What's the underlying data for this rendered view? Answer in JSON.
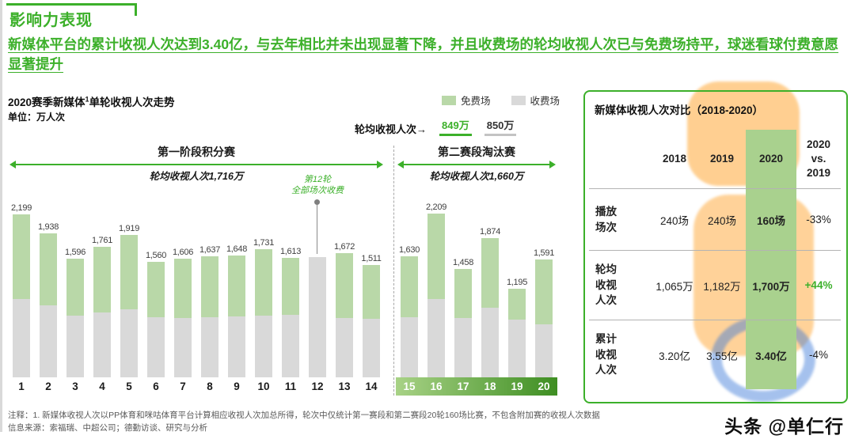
{
  "header": {
    "section_title": "影响力表现",
    "headline": "新媒体平台的累计收视人次达到3.40亿，与去年相比并未出现显著下降，并且收费场的轮均收视人次已与免费场持平，球迷看球付费意愿显著提升"
  },
  "colors": {
    "brand_green": "#3cb02a",
    "free_bar": "#b9d8a8",
    "paid_bar": "#d9d9d9",
    "table_highlight": "#a9d18e"
  },
  "chart_data": {
    "type": "stacked-bar",
    "title_pre": "2020赛季新媒体",
    "title_sup": "1",
    "title_post": "单轮收视人次走势",
    "unit": "单位：万人次",
    "legend": [
      {
        "label": "免费场",
        "color": "#b9d8a8"
      },
      {
        "label": "收费场",
        "color": "#d9d9d9"
      }
    ],
    "round_avg": {
      "label": "轮均收视人次→",
      "free": "849万",
      "paid": "850万"
    },
    "stages": [
      {
        "name": "第一阶段积分赛",
        "avg_label": "轮均收视人次1,716万",
        "round_start": 1,
        "round_end": 14
      },
      {
        "name": "第二赛段淘汰赛",
        "avg_label": "轮均收视人次1,660万",
        "round_start": 15,
        "round_end": 20
      }
    ],
    "annotation": {
      "line1": "第12轮",
      "line2": "全部场次收费",
      "round": 12
    },
    "categories": [
      "1",
      "2",
      "3",
      "4",
      "5",
      "6",
      "7",
      "8",
      "9",
      "10",
      "11",
      "12",
      "13",
      "14",
      "15",
      "16",
      "17",
      "18",
      "19",
      "20"
    ],
    "totals": [
      2199,
      1938,
      1596,
      1761,
      1919,
      1560,
      1606,
      1637,
      1648,
      1731,
      1613,
      1620,
      1672,
      1511,
      1630,
      2209,
      1458,
      1874,
      1195,
      1591
    ],
    "bar_labels": [
      "2,199",
      "1,938",
      "1,596",
      "1,761",
      "1,919",
      "1,560",
      "1,606",
      "1,637",
      "1,648",
      "1,731",
      "1,613",
      "",
      "1,672",
      "1,511",
      "1,630",
      "2,209",
      "1,458",
      "1,874",
      "1,195",
      "1,591"
    ],
    "series": [
      {
        "name": "免费场",
        "values": [
          1143,
          969,
          766,
          881,
          998,
          749,
          803,
          819,
          824,
          900,
          774,
          0,
          869,
          725,
          815,
          1149,
          656,
          937,
          418,
          875
        ]
      },
      {
        "name": "收费场",
        "values": [
          1056,
          969,
          830,
          880,
          921,
          811,
          803,
          818,
          824,
          831,
          839,
          1620,
          803,
          786,
          815,
          1060,
          802,
          937,
          777,
          716
        ]
      }
    ],
    "ymax": 2209,
    "ylabel": "万人次"
  },
  "comparison_table": {
    "title": "新媒体收视人次对比（2018-2020）",
    "columns": [
      "",
      "2018",
      "2019",
      "2020",
      "2020\nvs.\n2019"
    ],
    "rows": [
      {
        "label": "播放\n场次",
        "values": [
          "240场",
          "240场",
          "160场",
          "-33%"
        ]
      },
      {
        "label": "轮均\n收视\n人次",
        "values": [
          "1,065万",
          "1,182万",
          "1,700万",
          "+44%"
        ]
      },
      {
        "label": "累计\n收视\n人次",
        "values": [
          "3.20亿",
          "3.55亿",
          "3.40亿",
          "-4%"
        ]
      }
    ],
    "highlight_column": "2020"
  },
  "footer": {
    "footnote": "注释：1. 新媒体收视人次以PP体育和咪咕体育平台计算相应收视人次加总所得，轮次中仅统计第一赛段和第二赛段20轮160场比赛，不包含附加赛的收视人次数据",
    "source": "信息来源：索福瑞、中超公司；德勤访谈、研究与分析",
    "brand": "头条",
    "account": "@单仁行"
  }
}
